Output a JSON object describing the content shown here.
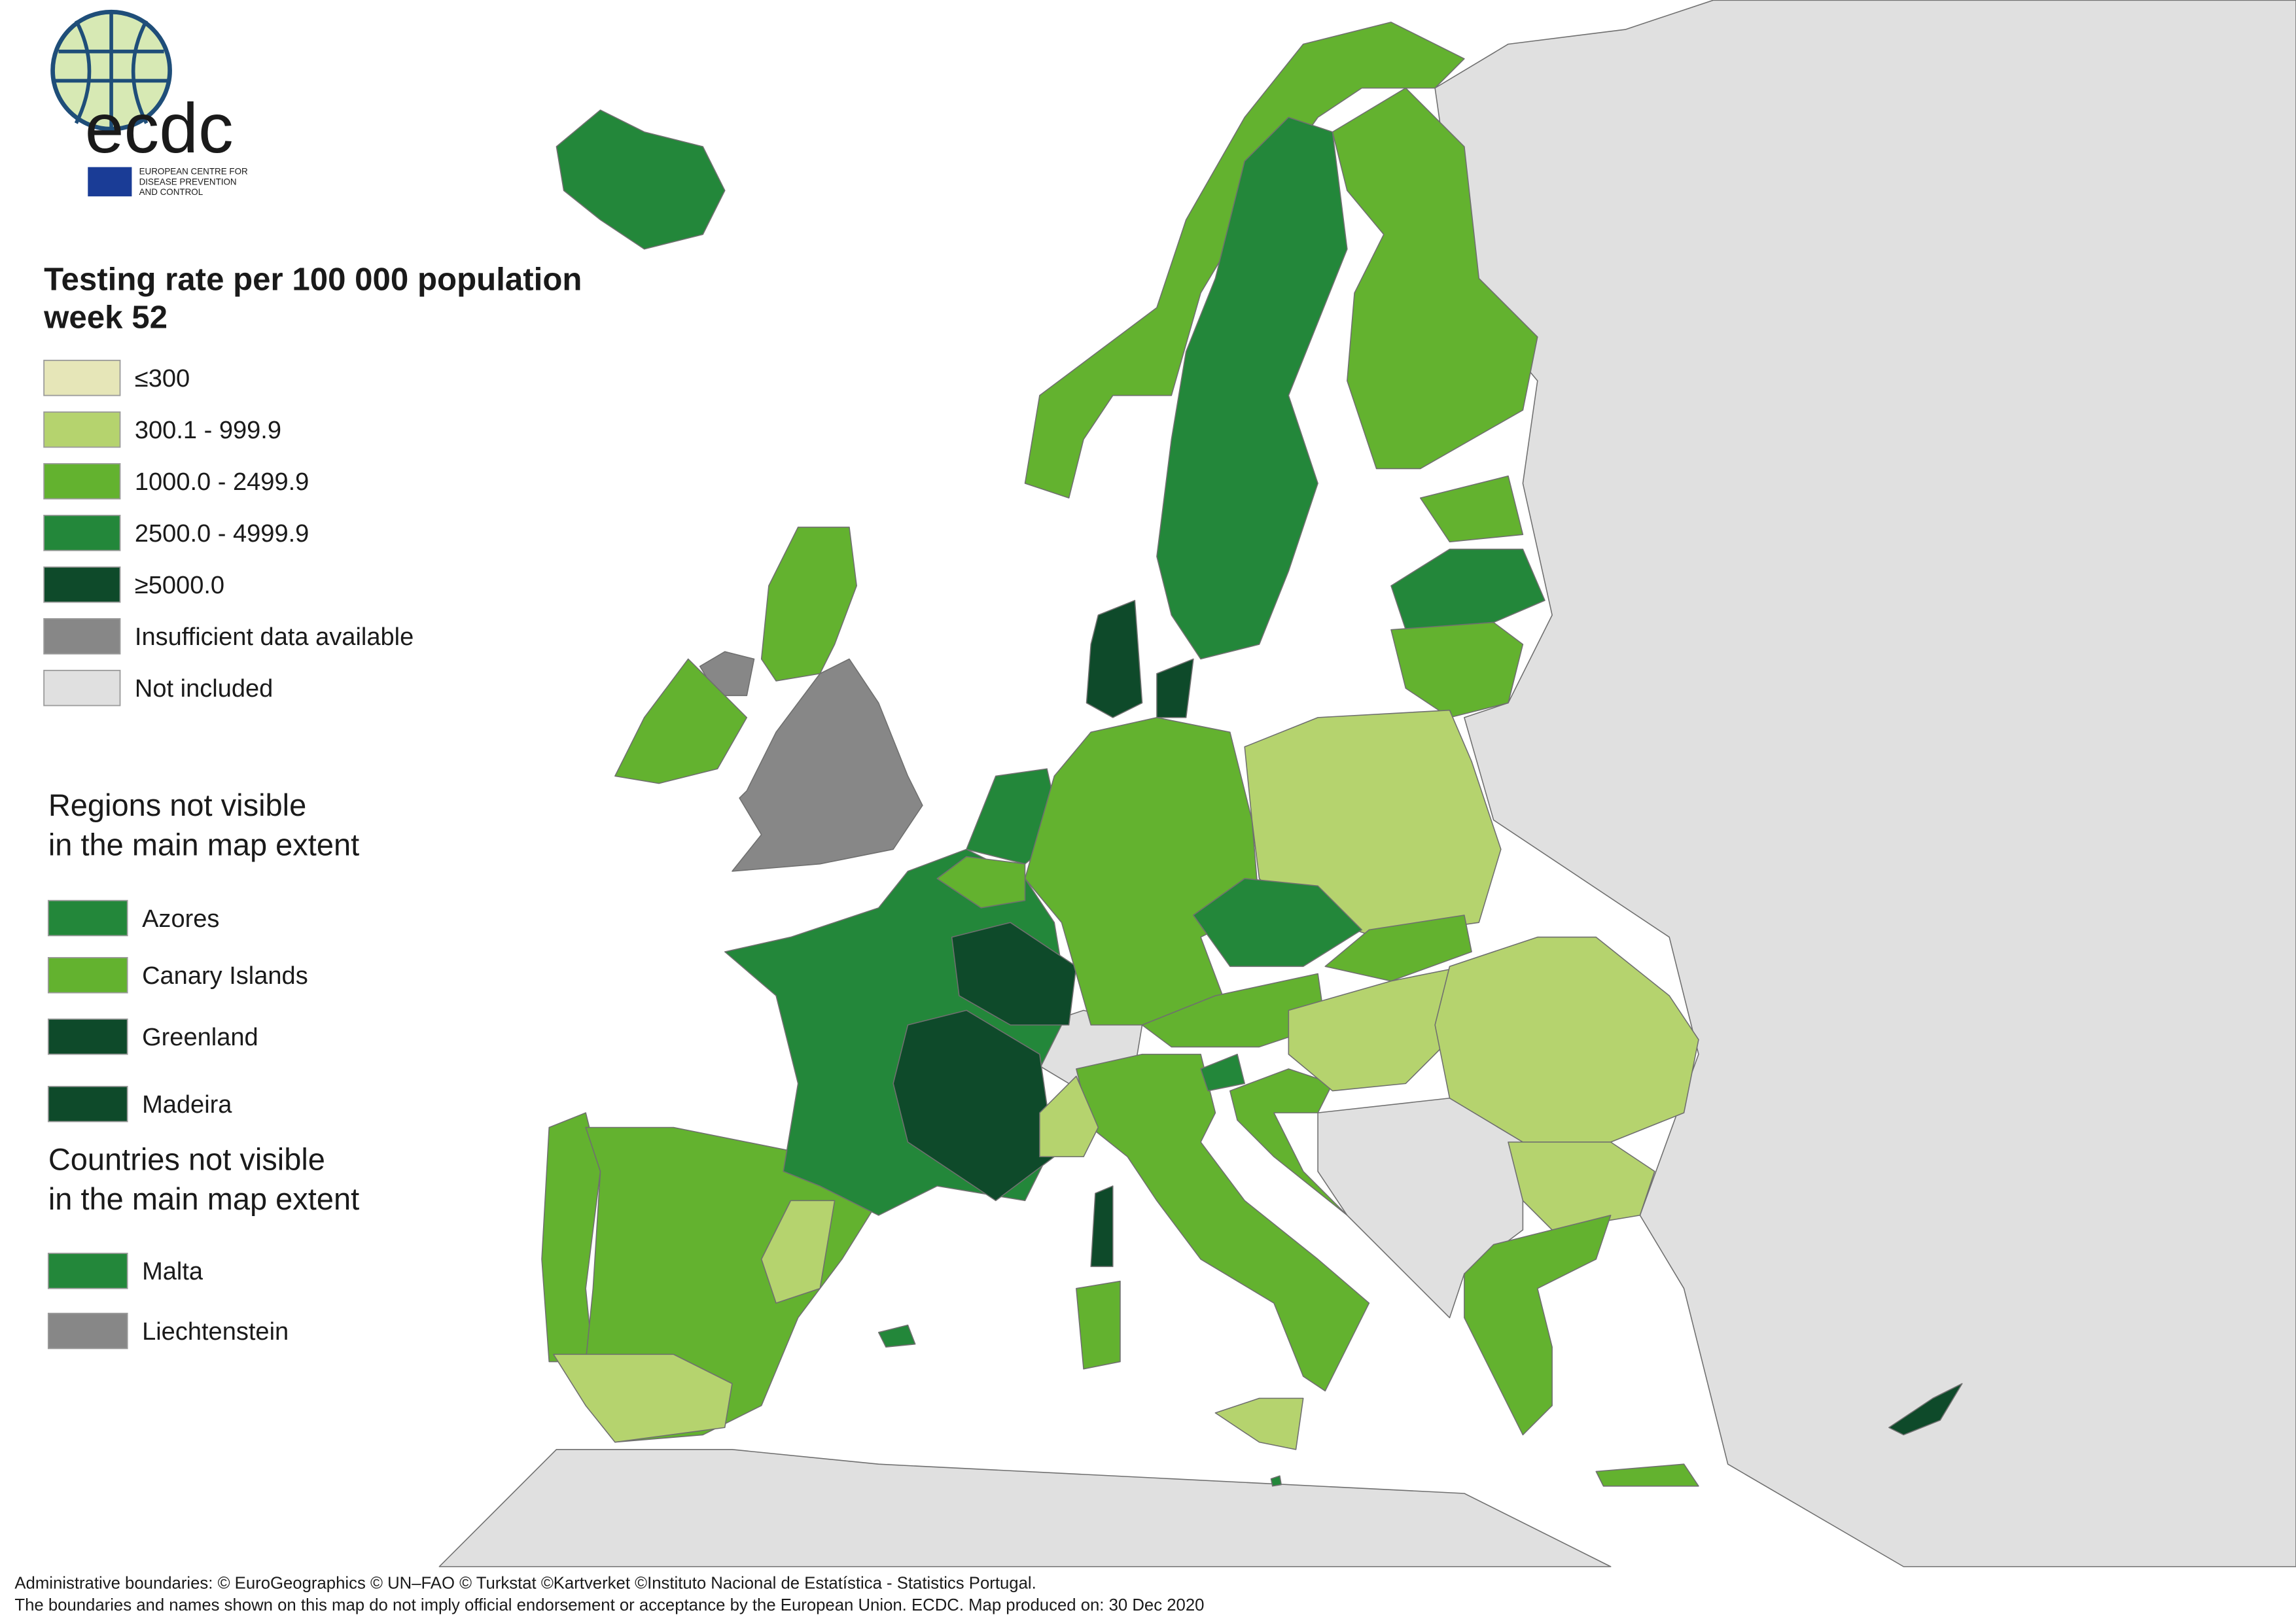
{
  "logo": {
    "acronym": "ecdc",
    "name": [
      "EUROPEAN CENTRE FOR",
      "DISEASE PREVENTION",
      "AND CONTROL"
    ]
  },
  "legend": {
    "title": [
      "Testing rate per 100 000 population",
      "week 52"
    ],
    "items": [
      {
        "label": "≤300",
        "color": "#e6e6b8"
      },
      {
        "label": "300.1 - 999.9",
        "color": "#b5d36e"
      },
      {
        "label": "1000.0 - 2499.9",
        "color": "#63b22f"
      },
      {
        "label": "2500.0 - 4999.9",
        "color": "#23873a"
      },
      {
        "label": "≥5000.0",
        "color": "#0e4a2a"
      },
      {
        "label": "Insufficient data available",
        "color": "#878787"
      },
      {
        "label": "Not included",
        "color": "#e0e0e0"
      }
    ]
  },
  "regions_not_visible": {
    "title": [
      "Regions not visible",
      "in the main map extent"
    ],
    "items": [
      {
        "label": "Azores",
        "color": "#23873a"
      },
      {
        "label": "Canary Islands",
        "color": "#63b22f"
      },
      {
        "label": "Greenland",
        "color": "#0e4a2a"
      },
      {
        "label": "Madeira",
        "color": "#0e4a2a"
      }
    ]
  },
  "countries_not_visible": {
    "title": [
      "Countries not visible",
      "in the main map extent"
    ],
    "items": [
      {
        "label": "Malta",
        "color": "#23873a"
      },
      {
        "label": "Liechtenstein",
        "color": "#878787"
      }
    ]
  },
  "footer": [
    "Administrative boundaries: © EuroGeographics © UN–FAO © Turkstat ©Kartverket ©Instituto Nacional de Estatística - Statistics Portugal.",
    "The boundaries and names shown on this map do not imply official endorsement or acceptance by the European Union. ECDC. Map produced on: 30 Dec 2020"
  ]
}
